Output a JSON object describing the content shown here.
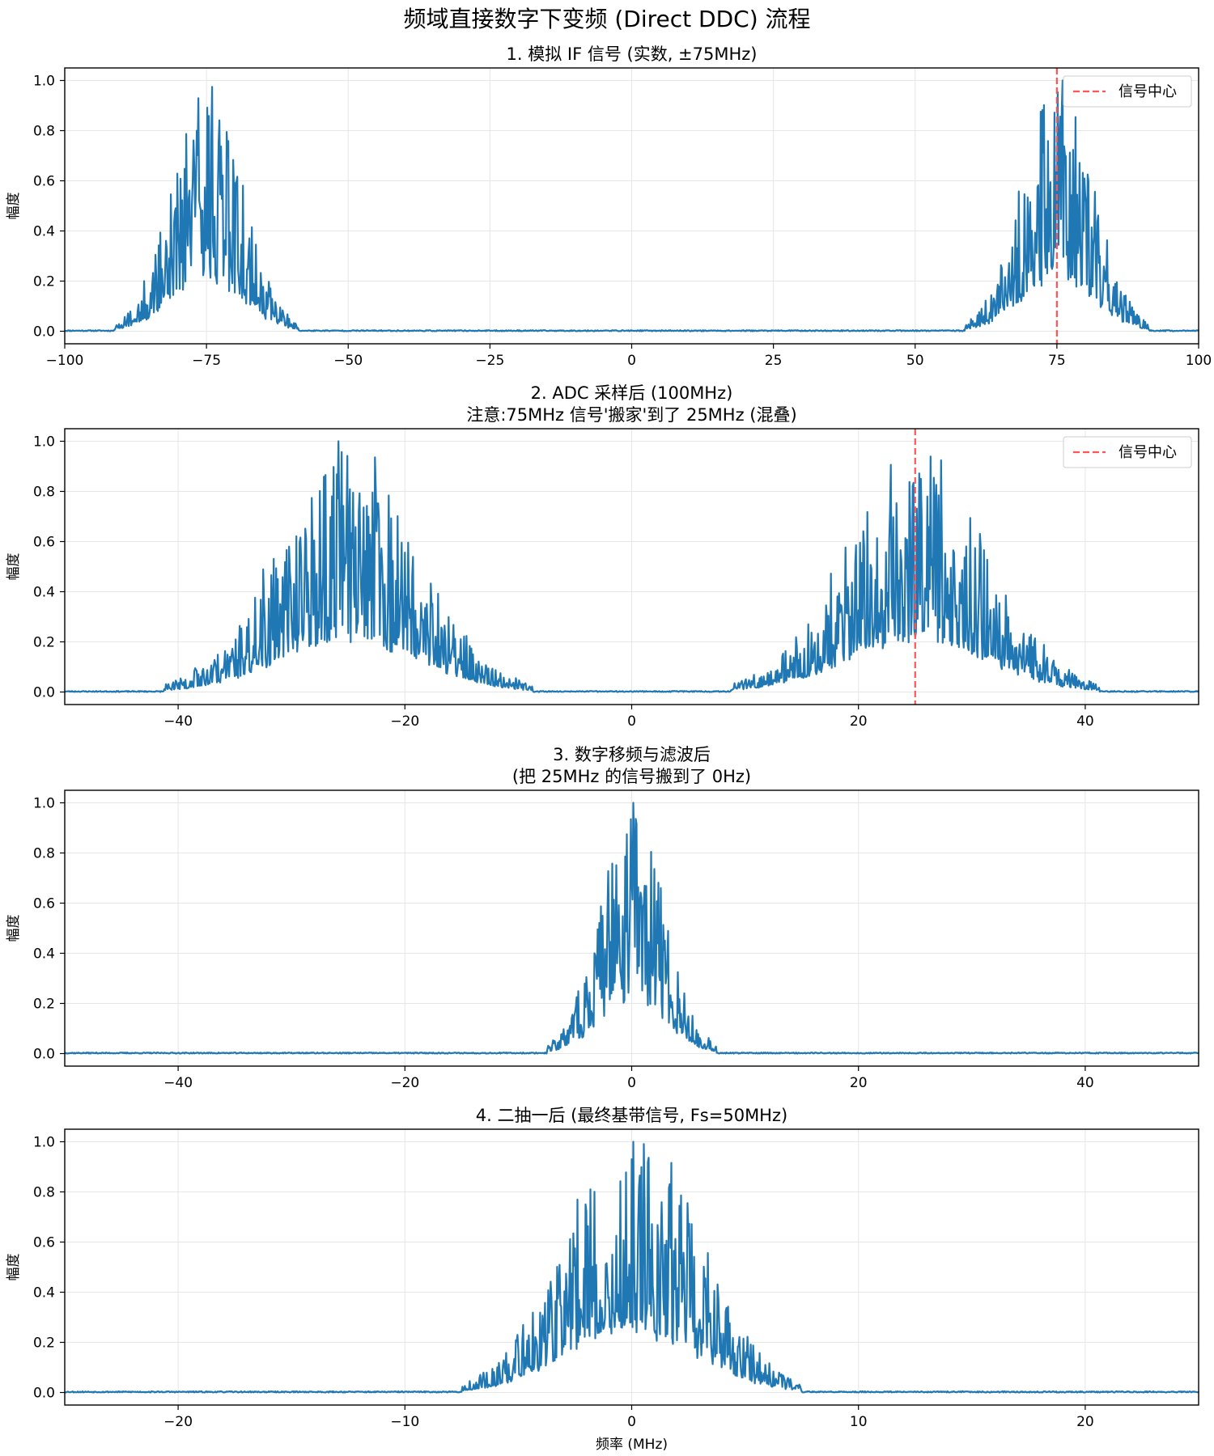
{
  "figure_title": "频域直接数字下变频 (Direct DDC) 流程",
  "chart_data": [
    {
      "type": "line",
      "title_lines": [
        "1. 模拟 IF 信号 (实数, ±75MHz)"
      ],
      "xlabel": "",
      "ylabel": "幅度",
      "xlim": [
        -100,
        100
      ],
      "ylim": [
        -0.05,
        1.05
      ],
      "xticks": [
        -100,
        -75,
        -50,
        -25,
        0,
        25,
        50,
        75,
        100
      ],
      "yticks": [
        0.0,
        0.2,
        0.4,
        0.6,
        0.8,
        1.0
      ],
      "grid": true,
      "series_color": "#1f77b4",
      "lobes": [
        {
          "center": -75,
          "width": 26
        },
        {
          "center": 75,
          "width": 26
        }
      ],
      "peak_value": 1.0,
      "seed": 11,
      "vline": {
        "x": 75,
        "color": "#ff5555",
        "legend": "信号中心"
      },
      "legend_position": "upper right"
    },
    {
      "type": "line",
      "title_lines": [
        "2. ADC 采样后 (100MHz)",
        "注意:75MHz 信号'搬家'到了 25MHz (混叠)"
      ],
      "xlabel": "",
      "ylabel": "幅度",
      "xlim": [
        -50,
        50
      ],
      "ylim": [
        -0.05,
        1.05
      ],
      "xticks": [
        -40,
        -20,
        0,
        20,
        40
      ],
      "yticks": [
        0.0,
        0.2,
        0.4,
        0.6,
        0.8,
        1.0
      ],
      "grid": true,
      "series_color": "#1f77b4",
      "lobes": [
        {
          "center": -25,
          "width": 26
        },
        {
          "center": 25,
          "width": 26
        }
      ],
      "peak_value": 1.0,
      "seed": 23,
      "vline": {
        "x": 25,
        "color": "#ff5555",
        "legend": "信号中心"
      },
      "legend_position": "upper right"
    },
    {
      "type": "line",
      "title_lines": [
        "3. 数字移频与滤波后",
        "(把 25MHz 的信号搬到了 0Hz)"
      ],
      "xlabel": "",
      "ylabel": "幅度",
      "xlim": [
        -50,
        50
      ],
      "ylim": [
        -0.05,
        1.05
      ],
      "xticks": [
        -40,
        -20,
        0,
        20,
        40
      ],
      "yticks": [
        0.0,
        0.2,
        0.4,
        0.6,
        0.8,
        1.0
      ],
      "grid": true,
      "series_color": "#1f77b4",
      "lobes": [
        {
          "center": 0,
          "width": 12
        }
      ],
      "peak_value": 1.0,
      "seed": 37,
      "vline": null
    },
    {
      "type": "line",
      "title_lines": [
        "4. 二抽一后 (最终基带信号, Fs=50MHz)"
      ],
      "xlabel": "频率 (MHz)",
      "ylabel": "幅度",
      "xlim": [
        -25,
        25
      ],
      "ylim": [
        -0.05,
        1.05
      ],
      "xticks": [
        -20,
        -10,
        0,
        10,
        20
      ],
      "yticks": [
        0.0,
        0.2,
        0.4,
        0.6,
        0.8,
        1.0
      ],
      "grid": true,
      "series_color": "#1f77b4",
      "lobes": [
        {
          "center": 0,
          "width": 12
        }
      ],
      "peak_value": 1.0,
      "seed": 53,
      "vline": null
    }
  ]
}
